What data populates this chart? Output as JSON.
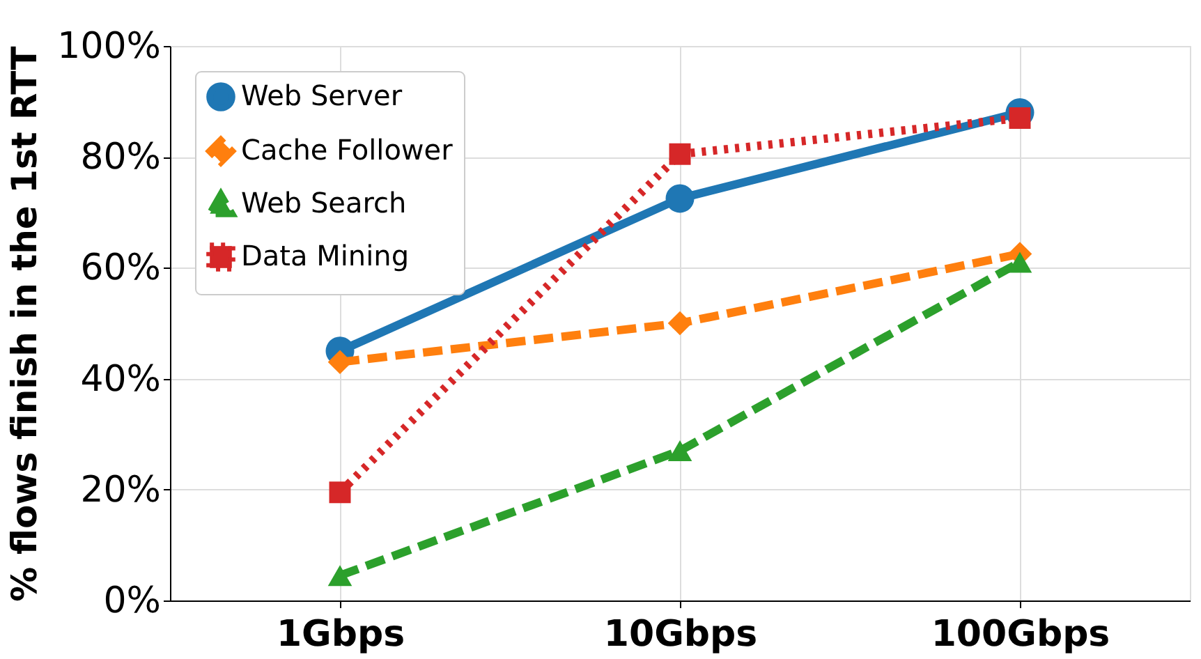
{
  "chart_data": {
    "type": "line",
    "ylabel": "% flows finish in the 1st  RTT",
    "categories": [
      "1Gbps",
      "10Gbps",
      "100Gbps"
    ],
    "series": [
      {
        "name": "Web Server",
        "color": "#1f77b4",
        "values": [
          45,
          72.5,
          88
        ],
        "marker": "circle",
        "line_style": "solid"
      },
      {
        "name": "Cache Follower",
        "color": "#ff7f0e",
        "values": [
          43,
          50,
          62.5
        ],
        "marker": "diamond",
        "line_style": "dashed"
      },
      {
        "name": "Web Search",
        "color": "#2ca02c",
        "values": [
          4.5,
          27,
          61
        ],
        "marker": "triangle",
        "line_style": "dashed"
      },
      {
        "name": "Data Mining",
        "color": "#d62728",
        "values": [
          19.5,
          80.5,
          87
        ],
        "marker": "square",
        "line_style": "dotted"
      }
    ],
    "ylim": [
      0,
      100
    ],
    "yticks": [
      {
        "value": 0,
        "label": "0%"
      },
      {
        "value": 20,
        "label": "20%"
      },
      {
        "value": 40,
        "label": "40%"
      },
      {
        "value": 60,
        "label": "60%"
      },
      {
        "value": 80,
        "label": "80%"
      },
      {
        "value": 100,
        "label": "100%"
      }
    ],
    "grid": true,
    "legend": "top left"
  }
}
